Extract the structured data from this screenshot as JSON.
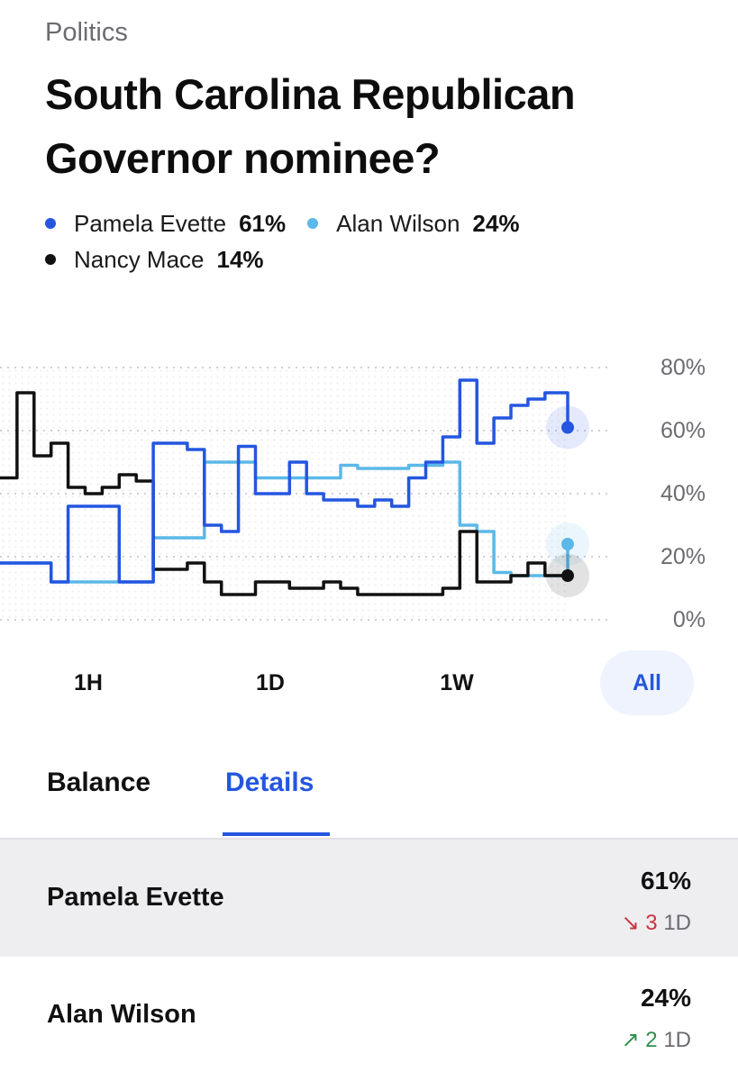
{
  "header": {
    "category": "Politics",
    "title": "South Carolina Republican Governor nominee?"
  },
  "legend": [
    {
      "name": "Pamela Evette",
      "pct": "61%",
      "color": "#2456e0"
    },
    {
      "name": "Alan Wilson",
      "pct": "24%",
      "color": "#5bb8e8"
    },
    {
      "name": "Nancy Mace",
      "pct": "14%",
      "color": "#111111"
    }
  ],
  "ranges": {
    "options": [
      "1H",
      "1D",
      "1W",
      "All"
    ],
    "selected": "All"
  },
  "tabs": {
    "items": [
      "Balance",
      "Details"
    ],
    "selected": "Details"
  },
  "outcomes": [
    {
      "name": "Pamela Evette",
      "pct": "61%",
      "arrow": "↘",
      "change": "3",
      "period": "1D",
      "direction": "down"
    },
    {
      "name": "Alan Wilson",
      "pct": "24%",
      "arrow": "↗",
      "change": "2",
      "period": "1D",
      "direction": "up"
    }
  ],
  "chart_data": {
    "type": "line",
    "y_ticks": [
      "80%",
      "60%",
      "40%",
      "20%",
      "0%"
    ],
    "ylim": [
      0,
      80
    ],
    "grid": true,
    "x": [
      0,
      3,
      6,
      9,
      12,
      15,
      18,
      21,
      24,
      27,
      30,
      33,
      36,
      39,
      42,
      45,
      48,
      51,
      54,
      57,
      60,
      63,
      66,
      69,
      72,
      75,
      78,
      81,
      84,
      87,
      90,
      93,
      96,
      100
    ],
    "series": [
      {
        "name": "Pamela Evette",
        "color": "#2456e0",
        "values": [
          18,
          18,
          18,
          12,
          36,
          36,
          36,
          12,
          12,
          56,
          56,
          54,
          30,
          28,
          55,
          40,
          40,
          50,
          40,
          38,
          38,
          36,
          38,
          36,
          45,
          50,
          58,
          76,
          56,
          64,
          68,
          70,
          72,
          61
        ]
      },
      {
        "name": "Alan Wilson",
        "color": "#5bb8e8",
        "values": [
          18,
          18,
          18,
          12,
          12,
          12,
          12,
          12,
          12,
          26,
          26,
          26,
          50,
          50,
          50,
          45,
          45,
          45,
          45,
          45,
          49,
          48,
          48,
          48,
          49,
          49,
          50,
          30,
          28,
          15,
          14,
          14,
          14,
          24
        ]
      },
      {
        "name": "Nancy Mace",
        "color": "#111111",
        "values": [
          45,
          72,
          52,
          56,
          42,
          40,
          42,
          46,
          44,
          16,
          16,
          18,
          12,
          8,
          8,
          12,
          12,
          10,
          10,
          12,
          10,
          8,
          8,
          8,
          8,
          8,
          10,
          28,
          12,
          12,
          14,
          18,
          14,
          14
        ]
      }
    ]
  }
}
